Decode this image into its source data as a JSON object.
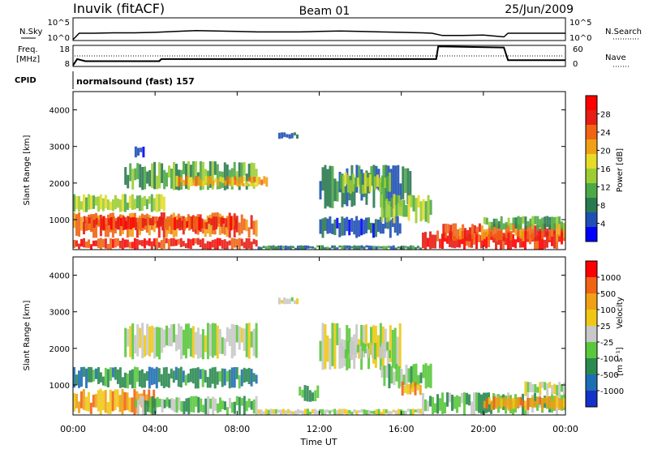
{
  "header": {
    "station": "Inuvik (fitACF)",
    "beam": "Beam 01",
    "date": "25/Jun/2009"
  },
  "top_panels": {
    "nsky_label": "N.Sky",
    "nsky_ticks": [
      "10^5",
      "10^0"
    ],
    "nsearch_label": "N.Search",
    "nsearch_ticks": [
      "10^5",
      "10^0"
    ],
    "freq_label": "Freq.",
    "freq_unit": "[MHz]",
    "freq_ticks": [
      "18",
      "8"
    ],
    "nave_label": "Nave",
    "nave_ticks": [
      "60",
      "0"
    ],
    "cpid_label": "CPID",
    "cpid_value": "normalsound (fast) 157"
  },
  "x_axis": {
    "label": "Time UT",
    "ticks": [
      "00:00",
      "04:00",
      "08:00",
      "12:00",
      "16:00",
      "20:00",
      "00:00"
    ]
  },
  "power_panel": {
    "ylabel": "Slant Range [km]",
    "yticks": [
      "4000",
      "3000",
      "2000",
      "1000"
    ],
    "colorbar_label": "Power [dB]",
    "colorbar_ticks": [
      "28",
      "24",
      "20",
      "16",
      "12",
      "8",
      "4"
    ],
    "colors": [
      "#0000ff",
      "#1e50b4",
      "#2a7a50",
      "#4caa46",
      "#9ccd32",
      "#e6dc28",
      "#f0a014",
      "#f06414",
      "#e61e14",
      "#ff0000"
    ]
  },
  "velocity_panel": {
    "ylabel": "Slant Range [km]",
    "yticks": [
      "4000",
      "3000",
      "2000",
      "1000"
    ],
    "colorbar_label": "Velocity",
    "colorbar_unit": "[m s⁻¹]",
    "colorbar_ticks": [
      "1000",
      "500",
      "100",
      "25",
      "-25",
      "-100",
      "-500",
      "-1000"
    ],
    "colors": [
      "#1432c8",
      "#1e6eb4",
      "#2a8a50",
      "#5ac83c",
      "#c8c8c8",
      "#f0c814",
      "#f0a014",
      "#f06414",
      "#ff0000"
    ]
  },
  "chart_data": [
    {
      "type": "line",
      "name": "N.Sky",
      "x_hours": [
        0,
        0.3,
        1,
        2,
        3,
        4,
        5,
        6,
        7,
        8,
        9,
        10,
        11,
        12,
        13,
        14,
        15,
        16,
        17,
        17.5,
        18,
        19,
        20,
        21,
        21.2,
        22,
        23,
        24
      ],
      "log10_values": [
        0.2,
        1.6,
        1.6,
        1.7,
        1.7,
        1.8,
        2.0,
        2.2,
        2.1,
        2.0,
        1.9,
        1.9,
        1.9,
        2.0,
        2.1,
        2.0,
        1.9,
        1.8,
        1.7,
        1.6,
        1.1,
        1.1,
        1.2,
        0.8,
        1.6,
        1.6,
        1.6,
        1.6
      ]
    },
    {
      "type": "line",
      "name": "Freq.",
      "x_hours": [
        0,
        0.2,
        0.6,
        4.2,
        4.3,
        17.7,
        17.8,
        21.0,
        21.2,
        24
      ],
      "values_mhz": [
        8.5,
        11.5,
        10.5,
        10.5,
        11.5,
        11.5,
        17.5,
        17.0,
        11.0,
        11.0
      ]
    },
    {
      "type": "heatmap",
      "name": "Power",
      "xlim_hours": [
        0,
        24
      ],
      "ylim_km": [
        180,
        4500
      ],
      "value_unit": "dB",
      "range": [
        0,
        32
      ]
    },
    {
      "type": "heatmap",
      "name": "Velocity",
      "xlim_hours": [
        0,
        24
      ],
      "ylim_km": [
        180,
        4500
      ],
      "value_unit": "m s-1",
      "range": [
        -1000,
        1000
      ]
    }
  ]
}
